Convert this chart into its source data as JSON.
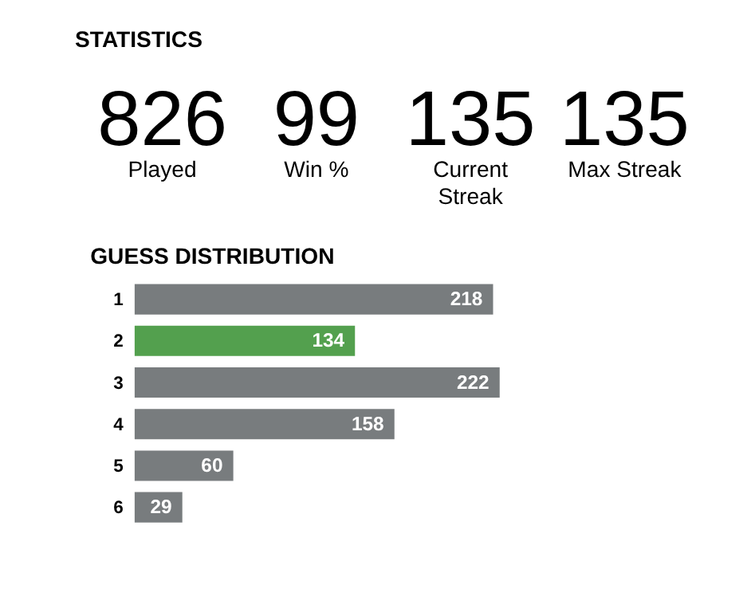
{
  "chart_data": [
    {
      "type": "other",
      "title": "STATISTICS",
      "annotations": [
        "826",
        "Played",
        "99",
        "Win %",
        "135",
        "Current\nStreak",
        "135",
        "Max Streak"
      ]
    },
    {
      "type": "bar",
      "title": "GUESS DISTRIBUTION",
      "orientation": "horizontal",
      "categories": [
        "1",
        "2",
        "3",
        "4",
        "5",
        "6"
      ],
      "values": [
        218,
        134,
        222,
        158,
        60,
        29
      ],
      "colors": [
        "#787c7e",
        "#53a04e",
        "#787c7e",
        "#787c7e",
        "#787c7e",
        "#787c7e"
      ],
      "data_labels": true
    }
  ]
}
